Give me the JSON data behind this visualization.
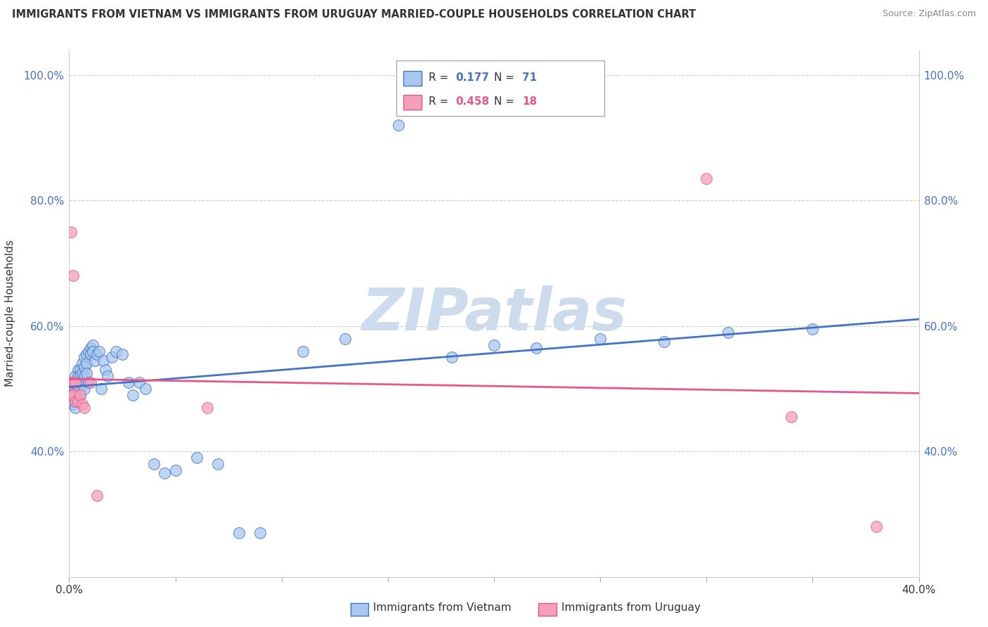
{
  "title": "IMMIGRANTS FROM VIETNAM VS IMMIGRANTS FROM URUGUAY MARRIED-COUPLE HOUSEHOLDS CORRELATION CHART",
  "source": "Source: ZipAtlas.com",
  "ylabel": "Married-couple Households",
  "legend1_label": "Immigrants from Vietnam",
  "legend2_label": "Immigrants from Uruguay",
  "R_vietnam": 0.177,
  "N_vietnam": 71,
  "R_uruguay": 0.458,
  "N_uruguay": 18,
  "color_vietnam": "#a8c8f0",
  "color_uruguay": "#f4a0b8",
  "color_line_vietnam": "#4472c4",
  "color_line_uruguay": "#e8558a",
  "vietnam_x": [
    0.001,
    0.001,
    0.001,
    0.002,
    0.002,
    0.002,
    0.002,
    0.002,
    0.003,
    0.003,
    0.003,
    0.003,
    0.003,
    0.003,
    0.004,
    0.004,
    0.004,
    0.004,
    0.004,
    0.005,
    0.005,
    0.005,
    0.005,
    0.005,
    0.006,
    0.006,
    0.006,
    0.007,
    0.007,
    0.007,
    0.007,
    0.008,
    0.008,
    0.008,
    0.009,
    0.009,
    0.01,
    0.01,
    0.011,
    0.011,
    0.012,
    0.013,
    0.014,
    0.015,
    0.016,
    0.017,
    0.018,
    0.02,
    0.022,
    0.025,
    0.028,
    0.03,
    0.033,
    0.036,
    0.04,
    0.045,
    0.05,
    0.06,
    0.07,
    0.08,
    0.09,
    0.11,
    0.13,
    0.155,
    0.18,
    0.2,
    0.22,
    0.25,
    0.28,
    0.31,
    0.35
  ],
  "vietnam_y": [
    0.5,
    0.49,
    0.48,
    0.51,
    0.5,
    0.49,
    0.48,
    0.475,
    0.52,
    0.51,
    0.5,
    0.49,
    0.48,
    0.47,
    0.53,
    0.52,
    0.51,
    0.5,
    0.49,
    0.53,
    0.52,
    0.51,
    0.5,
    0.49,
    0.54,
    0.525,
    0.51,
    0.55,
    0.535,
    0.52,
    0.5,
    0.555,
    0.54,
    0.525,
    0.56,
    0.51,
    0.565,
    0.555,
    0.57,
    0.56,
    0.545,
    0.555,
    0.56,
    0.5,
    0.545,
    0.53,
    0.52,
    0.55,
    0.56,
    0.555,
    0.51,
    0.49,
    0.51,
    0.5,
    0.38,
    0.365,
    0.37,
    0.39,
    0.38,
    0.27,
    0.27,
    0.56,
    0.58,
    0.92,
    0.55,
    0.57,
    0.565,
    0.58,
    0.575,
    0.59,
    0.595
  ],
  "uruguay_x": [
    0.001,
    0.001,
    0.001,
    0.002,
    0.002,
    0.002,
    0.003,
    0.003,
    0.004,
    0.005,
    0.006,
    0.007,
    0.01,
    0.013,
    0.065,
    0.3,
    0.34,
    0.38
  ],
  "uruguay_y": [
    0.75,
    0.51,
    0.49,
    0.68,
    0.51,
    0.49,
    0.51,
    0.48,
    0.48,
    0.49,
    0.475,
    0.47,
    0.51,
    0.33,
    0.47,
    0.835,
    0.455,
    0.28
  ],
  "xlim": [
    0.0,
    0.4
  ],
  "ylim": [
    0.2,
    1.04
  ],
  "yticks": [
    0.4,
    0.6,
    0.8,
    1.0
  ],
  "ytick_labels": [
    "40.0%",
    "60.0%",
    "80.0%",
    "100.0%"
  ],
  "xticks": [
    0.0,
    0.05,
    0.1,
    0.15,
    0.2,
    0.25,
    0.3,
    0.35,
    0.4
  ],
  "background_color": "#ffffff",
  "grid_color": "#cccccc",
  "watermark_text": "ZIPatlas",
  "watermark_color": "#ccdcec"
}
